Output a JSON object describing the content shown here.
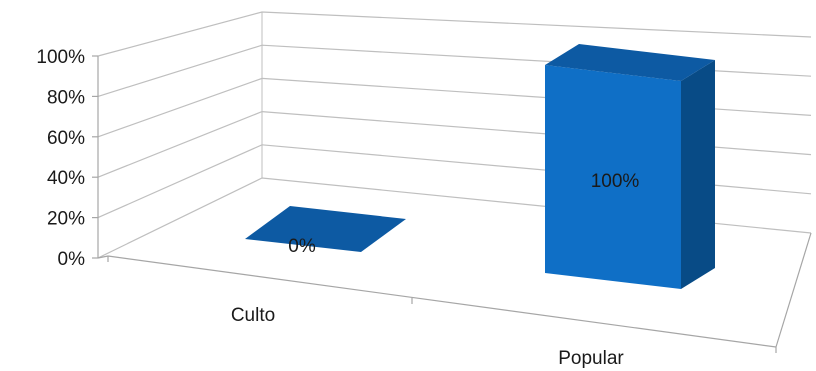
{
  "chart_data": {
    "type": "bar",
    "categories": [
      "Culto",
      "Popular"
    ],
    "values": [
      0,
      100
    ],
    "data_labels": [
      "0%",
      "100%"
    ],
    "y_ticks": [
      "0%",
      "20%",
      "40%",
      "60%",
      "80%",
      "100%"
    ],
    "ylim": [
      0,
      100
    ],
    "grid": true,
    "legend": "none",
    "title": "",
    "xlabel": "",
    "ylabel": ""
  },
  "colors": {
    "bar_front": "#0f6fc6",
    "bar_top": "#0d5aa3",
    "bar_side": "#084b86",
    "gridline": "#bfbfbf",
    "axis": "#a6a6a6"
  }
}
